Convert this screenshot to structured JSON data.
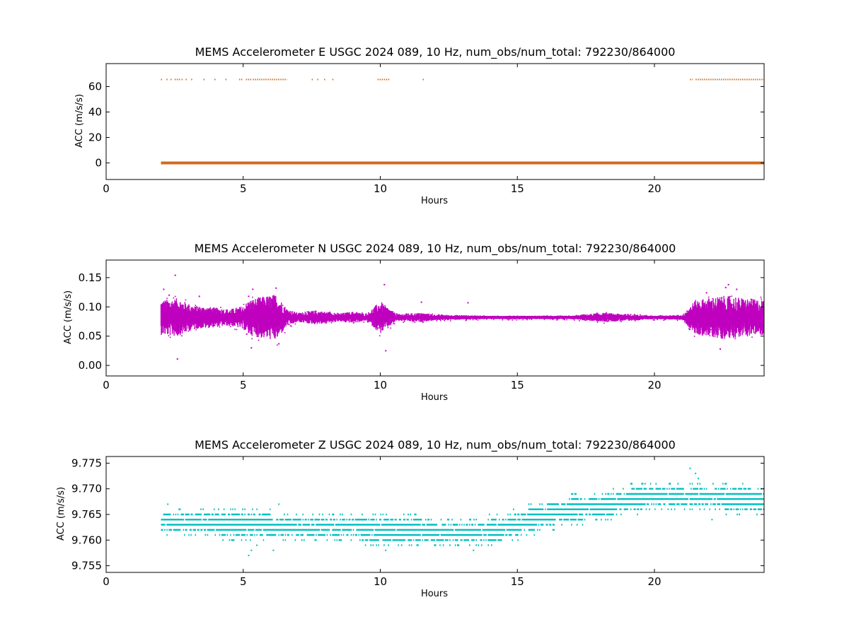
{
  "chart_data": [
    {
      "type": "scatter",
      "title": "MEMS Accelerometer E USGC 2024 089, 10 Hz, num_obs/num_total: 792230/864000",
      "xlabel": "Hours",
      "ylabel": "ACC (m/s/s)",
      "xlim": [
        0,
        24
      ],
      "ylim": [
        -13,
        78
      ],
      "xticks": [
        0,
        5,
        10,
        15,
        20
      ],
      "xtick_labels": [
        "0",
        "5",
        "10",
        "15",
        "20"
      ],
      "yticks": [
        0,
        20,
        40,
        60
      ],
      "ytick_labels": [
        "0",
        "20",
        "40",
        "60"
      ],
      "grid": false,
      "legend": "none",
      "color": "#d2691e",
      "series": [
        {
          "baseline": {
            "x_start": 2.0,
            "x_end": 24.0,
            "y": 0.0
          },
          "outlier_value": 65.5,
          "outlier_segments": [
            [
              2.0,
              2.05
            ],
            [
              2.2,
              2.25
            ],
            [
              2.35,
              2.4
            ],
            [
              2.5,
              2.7
            ],
            [
              2.75,
              2.8
            ],
            [
              2.9,
              2.95
            ],
            [
              3.1,
              3.15
            ],
            [
              3.55,
              3.6
            ],
            [
              3.95,
              4.0
            ],
            [
              4.35,
              4.4
            ],
            [
              4.85,
              5.0
            ],
            [
              5.1,
              5.3
            ],
            [
              5.35,
              6.6
            ],
            [
              7.5,
              7.55
            ],
            [
              7.7,
              7.75
            ],
            [
              7.95,
              8.0
            ],
            [
              8.25,
              8.3
            ],
            [
              9.9,
              10.35
            ],
            [
              11.55,
              11.6
            ],
            [
              21.3,
              21.4
            ],
            [
              21.5,
              24.0
            ]
          ]
        }
      ]
    },
    {
      "type": "scatter",
      "title": "MEMS Accelerometer N USGC 2024 089, 10 Hz, num_obs/num_total: 792230/864000",
      "xlabel": "Hours",
      "ylabel": "ACC (m/s/s)",
      "xlim": [
        0,
        24
      ],
      "ylim": [
        -0.018,
        0.18
      ],
      "xticks": [
        0,
        5,
        10,
        15,
        20
      ],
      "xtick_labels": [
        "0",
        "5",
        "10",
        "15",
        "20"
      ],
      "yticks": [
        0.0,
        0.05,
        0.1,
        0.15
      ],
      "ytick_labels": [
        "0.00",
        "0.05",
        "0.10",
        "0.15"
      ],
      "grid": false,
      "legend": "none",
      "color": "#bf00bf",
      "series": [
        {
          "center": 0.082,
          "x_start": 2.0,
          "x_end": 24.0,
          "noise_envelope": [
            [
              2.0,
              0.03
            ],
            [
              2.6,
              0.033
            ],
            [
              3.2,
              0.02
            ],
            [
              3.8,
              0.018
            ],
            [
              4.5,
              0.014
            ],
            [
              5.0,
              0.02
            ],
            [
              5.2,
              0.03
            ],
            [
              5.6,
              0.035
            ],
            [
              6.2,
              0.04
            ],
            [
              6.6,
              0.015
            ],
            [
              7.0,
              0.008
            ],
            [
              7.6,
              0.012
            ],
            [
              8.0,
              0.01
            ],
            [
              8.5,
              0.007
            ],
            [
              9.0,
              0.01
            ],
            [
              9.5,
              0.006
            ],
            [
              10.0,
              0.028
            ],
            [
              10.2,
              0.02
            ],
            [
              10.6,
              0.006
            ],
            [
              11.5,
              0.008
            ],
            [
              12.0,
              0.005
            ],
            [
              13.0,
              0.004
            ],
            [
              14.0,
              0.003
            ],
            [
              17.0,
              0.003
            ],
            [
              18.0,
              0.008
            ],
            [
              19.0,
              0.006
            ],
            [
              20.0,
              0.003
            ],
            [
              21.0,
              0.004
            ],
            [
              21.5,
              0.03
            ],
            [
              22.5,
              0.037
            ],
            [
              23.5,
              0.032
            ],
            [
              24.0,
              0.03
            ]
          ],
          "spikes": [
            [
              2.1,
              0.13
            ],
            [
              2.3,
              0.12
            ],
            [
              2.52,
              0.154
            ],
            [
              2.6,
              0.011
            ],
            [
              3.4,
              0.118
            ],
            [
              5.2,
              0.118
            ],
            [
              5.3,
              0.03
            ],
            [
              5.35,
              0.13
            ],
            [
              6.2,
              0.132
            ],
            [
              6.3,
              0.037
            ],
            [
              10.15,
              0.138
            ],
            [
              10.2,
              0.025
            ],
            [
              11.5,
              0.108
            ],
            [
              13.2,
              0.107
            ],
            [
              21.9,
              0.124
            ],
            [
              22.4,
              0.028
            ],
            [
              22.6,
              0.133
            ],
            [
              22.7,
              0.138
            ],
            [
              23.0,
              0.13
            ]
          ]
        }
      ]
    },
    {
      "type": "scatter",
      "title": "MEMS Accelerometer Z USGC 2024 089, 10 Hz, num_obs/num_total: 792230/864000",
      "xlabel": "Hours",
      "ylabel": "ACC (m/s/s)",
      "xlim": [
        0,
        24
      ],
      "ylim": [
        9.7537,
        9.7763
      ],
      "xticks": [
        0,
        5,
        10,
        15,
        20
      ],
      "xtick_labels": [
        "0",
        "5",
        "10",
        "15",
        "20"
      ],
      "yticks": [
        9.755,
        9.76,
        9.765,
        9.77,
        9.775
      ],
      "ytick_labels": [
        "9.755",
        "9.760",
        "9.765",
        "9.770",
        "9.775"
      ],
      "grid": false,
      "legend": "none",
      "color": "#00bfbf",
      "series": [
        {
          "quantization_step": 0.001,
          "x_start": 2.0,
          "x_end": 24.0,
          "drift": [
            [
              2.0,
              9.7634
            ],
            [
              4.0,
              9.7632
            ],
            [
              6.0,
              9.7628
            ],
            [
              8.0,
              9.7624
            ],
            [
              10.0,
              9.7621
            ],
            [
              12.0,
              9.7617
            ],
            [
              13.5,
              9.7615
            ],
            [
              14.5,
              9.7622
            ],
            [
              15.5,
              9.764
            ],
            [
              16.5,
              9.7654
            ],
            [
              17.5,
              9.7663
            ],
            [
              18.5,
              9.767
            ],
            [
              19.5,
              9.7683
            ],
            [
              20.5,
              9.7687
            ],
            [
              21.5,
              9.7688
            ],
            [
              22.5,
              9.7682
            ],
            [
              24.0,
              9.7676
            ]
          ],
          "spread": 0.0025,
          "outliers": [
            [
              2.25,
              9.767
            ],
            [
              6.3,
              9.767
            ],
            [
              5.2,
              9.757
            ],
            [
              5.3,
              9.758
            ],
            [
              5.5,
              9.759
            ],
            [
              6.1,
              9.758
            ],
            [
              10.2,
              9.758
            ],
            [
              13.4,
              9.758
            ],
            [
              13.5,
              9.764
            ],
            [
              21.3,
              9.774
            ],
            [
              21.5,
              9.773
            ],
            [
              21.6,
              9.772
            ],
            [
              22.1,
              9.764
            ],
            [
              23.1,
              9.765
            ]
          ]
        }
      ]
    }
  ]
}
